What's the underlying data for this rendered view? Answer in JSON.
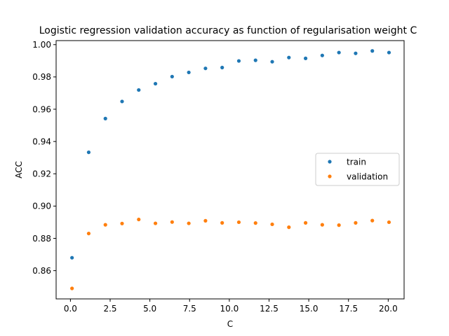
{
  "chart_data": {
    "type": "scatter",
    "title": "Logistic regression validation accuracy as function of regularisation weight C",
    "xlabel": "C",
    "ylabel": "ACC",
    "xlim": [
      -0.9,
      21.0
    ],
    "ylim": [
      0.8425,
      1.0025
    ],
    "xticks": [
      0.0,
      2.5,
      5.0,
      7.5,
      10.0,
      12.5,
      15.0,
      17.5,
      20.0
    ],
    "xtick_labels": [
      "0.0",
      "2.5",
      "5.0",
      "7.5",
      "10.0",
      "12.5",
      "15.0",
      "17.5",
      "20.0"
    ],
    "yticks": [
      0.86,
      0.88,
      0.9,
      0.92,
      0.94,
      0.96,
      0.98,
      1.0
    ],
    "ytick_labels": [
      "0.86",
      "0.88",
      "0.90",
      "0.92",
      "0.94",
      "0.96",
      "0.98",
      "1.00"
    ],
    "grid": false,
    "legend_position": "center-right",
    "x": [
      0.1,
      1.15,
      2.2,
      3.25,
      4.3,
      5.35,
      6.4,
      7.45,
      8.5,
      9.55,
      10.6,
      11.65,
      12.7,
      13.75,
      14.8,
      15.85,
      16.9,
      17.95,
      19.0,
      20.05
    ],
    "series": [
      {
        "name": "train",
        "color": "#1f77b4",
        "values": [
          0.868,
          0.9333,
          0.9542,
          0.9648,
          0.9719,
          0.9758,
          0.9802,
          0.9828,
          0.9853,
          0.9858,
          0.9899,
          0.9903,
          0.9894,
          0.992,
          0.9915,
          0.9933,
          0.9951,
          0.9946,
          0.9961,
          0.9951
        ]
      },
      {
        "name": "validation",
        "color": "#ff7f0e",
        "values": [
          0.849,
          0.883,
          0.8884,
          0.8892,
          0.8917,
          0.8893,
          0.8901,
          0.8893,
          0.8909,
          0.8896,
          0.89,
          0.8895,
          0.8887,
          0.8869,
          0.8896,
          0.8884,
          0.8882,
          0.8896,
          0.891,
          0.89
        ]
      }
    ]
  }
}
